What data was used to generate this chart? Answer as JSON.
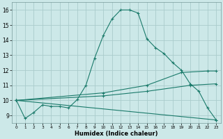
{
  "xlabel": "Humidex (Indice chaleur)",
  "bg_color": "#cce8e8",
  "grid_color": "#aacccc",
  "line_color": "#1a7a6a",
  "xlim": [
    -0.5,
    23.5
  ],
  "ylim": [
    8.5,
    16.5
  ],
  "xticks": [
    0,
    1,
    2,
    3,
    4,
    5,
    6,
    7,
    8,
    9,
    10,
    11,
    12,
    13,
    14,
    15,
    16,
    17,
    18,
    19,
    20,
    21,
    22,
    23
  ],
  "yticks": [
    9,
    10,
    11,
    12,
    13,
    14,
    15,
    16
  ],
  "line1_x": [
    0,
    1,
    2,
    3,
    4,
    5,
    6,
    7,
    8,
    9,
    10,
    11,
    12,
    13,
    14,
    15,
    16,
    17,
    18,
    19,
    20,
    21,
    22,
    23
  ],
  "line1_y": [
    10.0,
    8.8,
    9.2,
    9.7,
    9.6,
    9.6,
    9.5,
    10.05,
    11.0,
    12.8,
    14.3,
    15.4,
    16.0,
    16.0,
    15.8,
    14.1,
    13.5,
    13.1,
    12.5,
    12.0,
    11.1,
    10.6,
    9.5,
    8.7
  ],
  "line2_x": [
    0,
    23
  ],
  "line2_y": [
    10.0,
    8.7
  ],
  "line3_x": [
    0,
    10,
    15,
    20,
    23
  ],
  "line3_y": [
    10.0,
    10.3,
    10.6,
    11.0,
    11.1
  ],
  "line4_x": [
    0,
    10,
    15,
    19,
    22,
    23
  ],
  "line4_y": [
    10.0,
    10.5,
    11.0,
    11.85,
    11.95,
    11.95
  ]
}
